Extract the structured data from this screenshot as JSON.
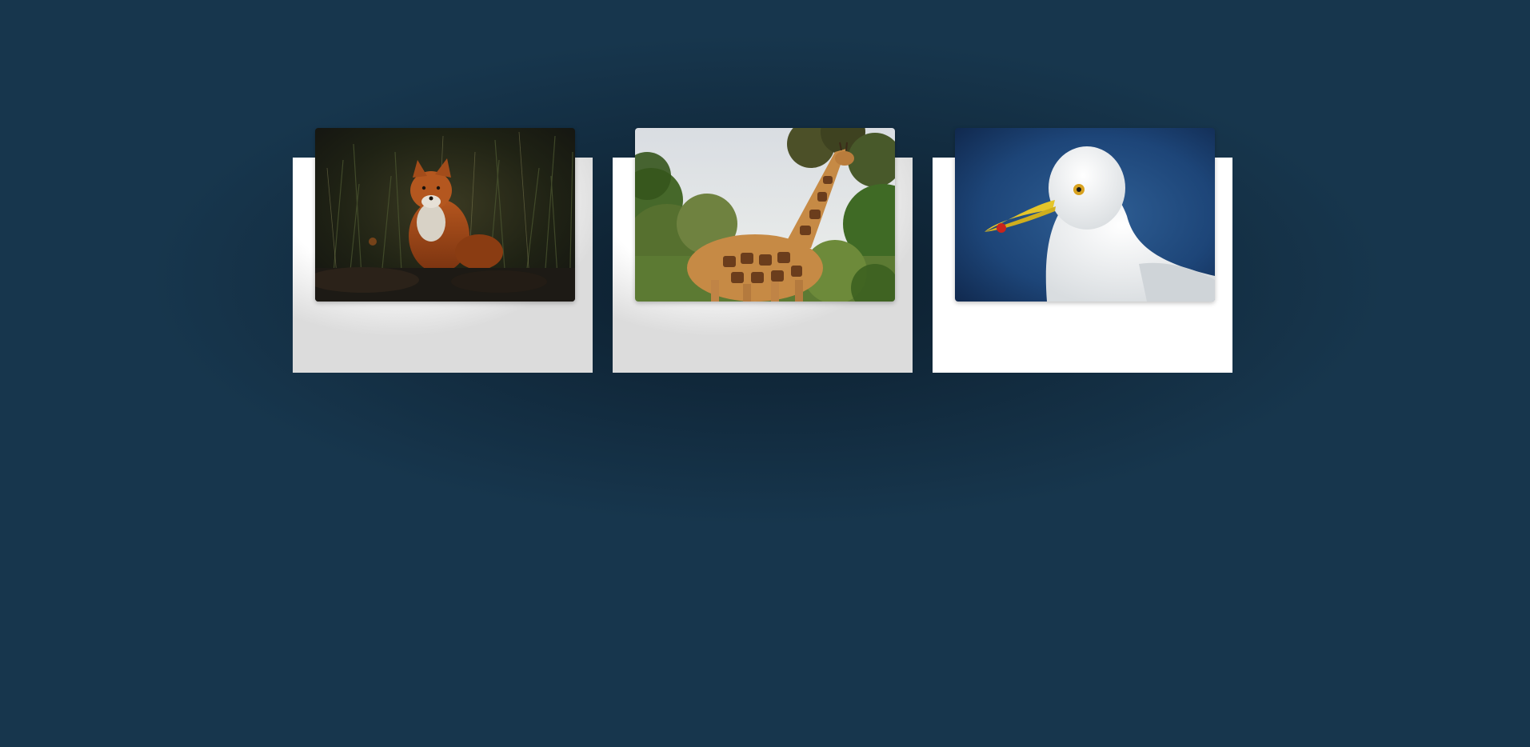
{
  "gallery": {
    "cards": [
      {
        "photo_icon": "fox-photo"
      },
      {
        "photo_icon": "giraffe-photo"
      },
      {
        "photo_icon": "seagull-photo"
      }
    ]
  },
  "colors": {
    "background": "#17364d",
    "card": "#ffffff"
  }
}
